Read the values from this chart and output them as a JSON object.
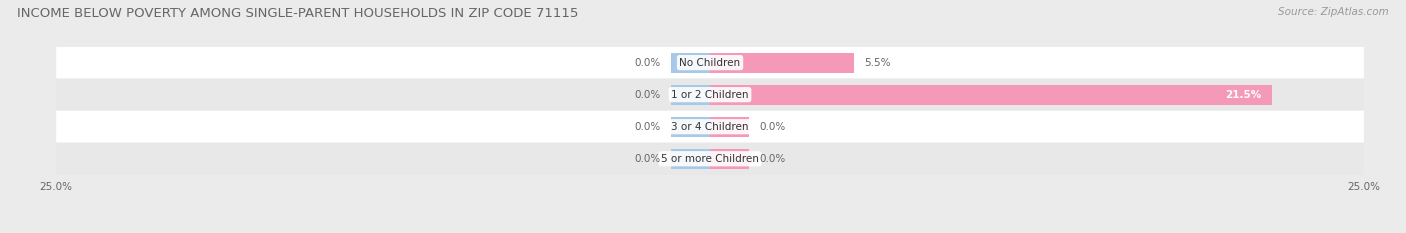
{
  "title": "INCOME BELOW POVERTY AMONG SINGLE-PARENT HOUSEHOLDS IN ZIP CODE 71115",
  "source": "Source: ZipAtlas.com",
  "categories": [
    "No Children",
    "1 or 2 Children",
    "3 or 4 Children",
    "5 or more Children"
  ],
  "father_values": [
    0.0,
    0.0,
    0.0,
    0.0
  ],
  "mother_values": [
    5.5,
    21.5,
    0.0,
    0.0
  ],
  "father_color": "#a8c8e8",
  "mother_color": "#f599b8",
  "xlim": [
    -25,
    25
  ],
  "bar_height": 0.62,
  "background_color": "#ebebeb",
  "row_bg_colors": [
    "#ffffff",
    "#e8e8e8"
  ],
  "title_fontsize": 9.5,
  "source_fontsize": 7.5,
  "category_fontsize": 7.5,
  "legend_fontsize": 8,
  "value_fontsize": 7.5,
  "min_bar_display": 1.5
}
